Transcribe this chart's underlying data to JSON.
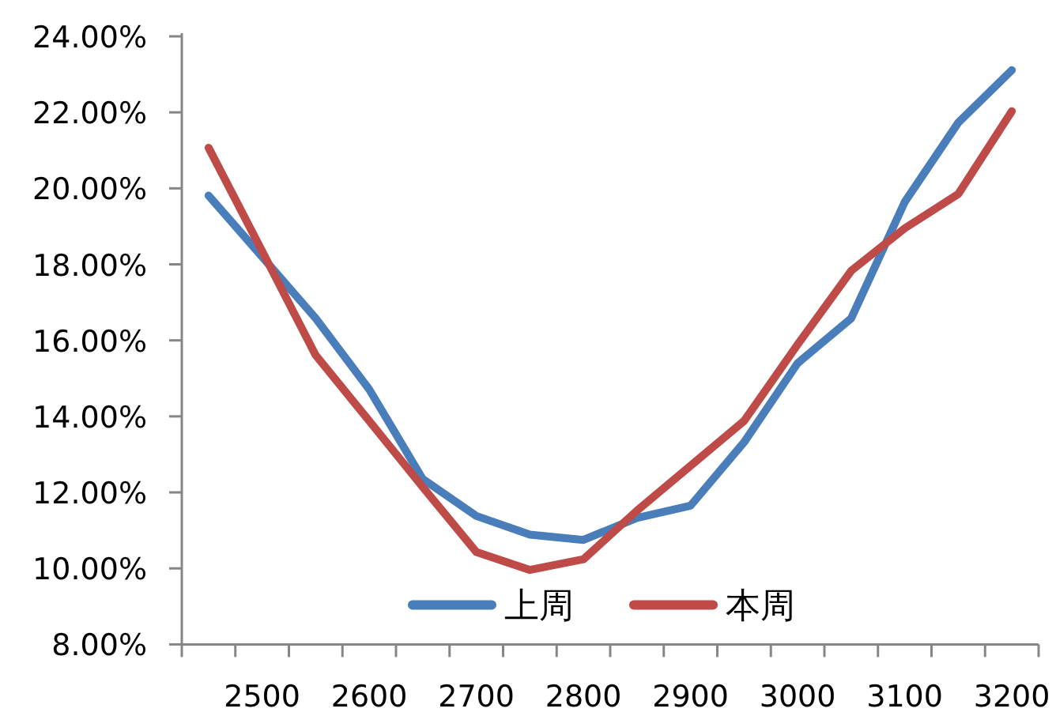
{
  "chart_data": {
    "type": "line",
    "categories": [
      null,
      "2500",
      null,
      "2600",
      null,
      "2700",
      null,
      "2800",
      null,
      "2900",
      null,
      "3000",
      null,
      "3100",
      null,
      "3200"
    ],
    "ylim": [
      8,
      24
    ],
    "yticks": [
      {
        "value": 8,
        "label": "8.00%"
      },
      {
        "value": 10,
        "label": "10.00%"
      },
      {
        "value": 12,
        "label": "12.00%"
      },
      {
        "value": 14,
        "label": "14.00%"
      },
      {
        "value": 16,
        "label": "16.00%"
      },
      {
        "value": 18,
        "label": "18.00%"
      },
      {
        "value": 20,
        "label": "20.00%"
      },
      {
        "value": 22,
        "label": "22.00%"
      },
      {
        "value": 24,
        "label": "24.00%"
      }
    ],
    "series": [
      {
        "name": "上周",
        "color": "#4a7ebb",
        "values": [
          19.81,
          18.2,
          16.58,
          14.71,
          12.35,
          11.38,
          10.89,
          10.75,
          11.33,
          11.65,
          13.32,
          15.4,
          16.58,
          19.64,
          21.73,
          23.11
        ]
      },
      {
        "name": "本周",
        "color": "#be4b48",
        "values": [
          21.07,
          18.35,
          15.61,
          13.88,
          12.14,
          10.43,
          9.96,
          10.24,
          11.52,
          12.7,
          13.88,
          15.89,
          17.83,
          18.95,
          19.85,
          22.03
        ]
      }
    ],
    "legend": "bottom",
    "grid": false,
    "marker": "none",
    "line_style": "solid"
  }
}
